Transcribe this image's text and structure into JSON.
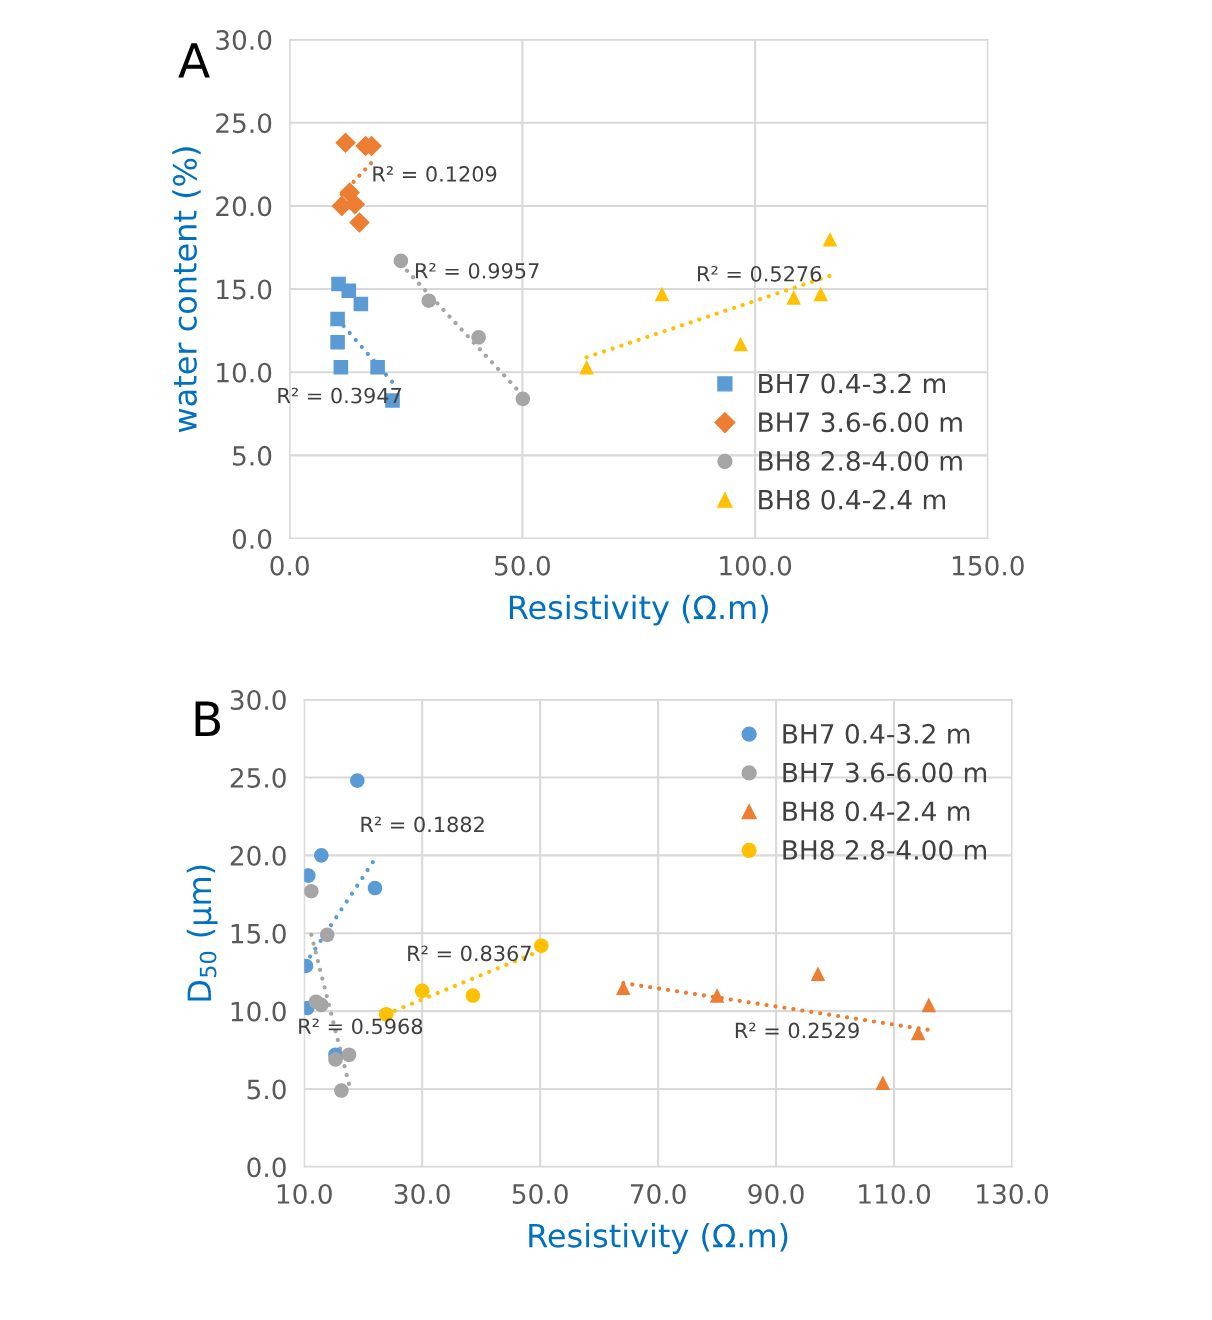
{
  "chart_data": [
    {
      "type": "scatter",
      "xlabel": "Resistivity (Ω.m)",
      "ylabel": "water content (%)",
      "xlim": [
        0,
        150
      ],
      "ylim": [
        0,
        30
      ],
      "xticks": [
        {
          "value": 0,
          "label": "0.0"
        },
        {
          "value": 50,
          "label": "50.0"
        },
        {
          "value": 100,
          "label": "100.0"
        },
        {
          "value": 150,
          "label": "150.0"
        }
      ],
      "yticks": [
        {
          "value": 0,
          "label": "0.0"
        },
        {
          "value": 5,
          "label": "5.0"
        },
        {
          "value": 10,
          "label": "10.0"
        },
        {
          "value": 15,
          "label": "15.0"
        },
        {
          "value": 20,
          "label": "20.0"
        },
        {
          "value": 25,
          "label": "25.0"
        },
        {
          "value": 30,
          "label": "30.0"
        }
      ],
      "grid": true,
      "legend": "bottom right",
      "annotations": [
        "A",
        "R² = 0.1209",
        "R² = 0.9957",
        "R² = 0.5276",
        "R² = 0.3947"
      ],
      "series": [
        {
          "name": "BH7 0.4-3.2 m",
          "color": "#5b9bd5",
          "marker": "square",
          "x": [
            10.5,
            12.7,
            15.3,
            10.3,
            10.3,
            11.0,
            18.9,
            22.1
          ],
          "values": [
            15.3,
            14.9,
            14.1,
            13.2,
            11.8,
            10.3,
            10.3,
            8.3
          ]
        },
        {
          "name": "BH7 3.6-6.00 m",
          "color": "#ed7d31",
          "marker": "diamond",
          "x": [
            12.0,
            16.3,
            17.6,
            12.9,
            11.2,
            14.0,
            15.0
          ],
          "values": [
            23.8,
            23.6,
            23.6,
            20.8,
            20.0,
            20.1,
            19.0
          ]
        },
        {
          "name": "BH8 2.8-4.00 m",
          "color": "#a5a5a5",
          "marker": "circle",
          "x": [
            23.9,
            29.9,
            40.6,
            50.1
          ],
          "values": [
            16.7,
            14.3,
            12.1,
            8.4
          ]
        },
        {
          "name": "BH8 0.4-2.4 m",
          "color": "#ffc000",
          "marker": "triangle",
          "x": [
            63.8,
            80.0,
            96.9,
            108.3,
            114.1,
            116.1
          ],
          "values": [
            10.3,
            14.7,
            11.7,
            14.5,
            14.7,
            18.0
          ]
        },
        {
          "type": "line",
          "line_style": "dotted",
          "color": "#5b9bd5",
          "x": [
            10.3,
            22.1
          ],
          "values": [
            13.2,
            9.4
          ]
        },
        {
          "type": "line",
          "line_style": "dotted",
          "color": "#ed7d31",
          "x": [
            11.2,
            17.6
          ],
          "values": [
            20.7,
            22.6
          ]
        },
        {
          "type": "line",
          "line_style": "dotted",
          "color": "#a5a5a5",
          "x": [
            23.9,
            50.1
          ],
          "values": [
            16.5,
            8.6
          ]
        },
        {
          "type": "line",
          "line_style": "dotted",
          "color": "#ffc000",
          "x": [
            63.8,
            116.1
          ],
          "values": [
            10.9,
            15.8
          ]
        }
      ]
    },
    {
      "type": "scatter",
      "xlabel": "Resistivity (Ω.m)",
      "ylabel": "D$_{50}$ (µm)",
      "xlim": [
        10,
        130
      ],
      "ylim": [
        0,
        30
      ],
      "xticks": [
        {
          "value": 10,
          "label": "10.0"
        },
        {
          "value": 30,
          "label": "30.0"
        },
        {
          "value": 50,
          "label": "50.0"
        },
        {
          "value": 70,
          "label": "70.0"
        },
        {
          "value": 90,
          "label": "90.0"
        },
        {
          "value": 110,
          "label": "110.0"
        },
        {
          "value": 130,
          "label": "130.0"
        }
      ],
      "yticks": [
        {
          "value": 0,
          "label": "0.0"
        },
        {
          "value": 5,
          "label": "5.0"
        },
        {
          "value": 10,
          "label": "10.0"
        },
        {
          "value": 15,
          "label": "15.0"
        },
        {
          "value": 20,
          "label": "20.0"
        },
        {
          "value": 25,
          "label": "25.0"
        },
        {
          "value": 30,
          "label": "30.0"
        }
      ],
      "grid": true,
      "legend": "top right",
      "annotations": [
        "B",
        "R² = 0.1882",
        "R² = 0.8367",
        "R² = 0.5968",
        "R² = 0.2529"
      ],
      "series": [
        {
          "name": "BH7 0.4-3.2 m",
          "color": "#5b9bd5",
          "marker": "circle",
          "x": [
            19.0,
            12.9,
            10.7,
            22.0,
            10.3,
            10.5,
            15.3
          ],
          "values": [
            24.8,
            20.0,
            18.7,
            17.9,
            12.9,
            10.2,
            7.2
          ]
        },
        {
          "name": "BH7 3.6-6.00 m",
          "color": "#a5a5a5",
          "marker": "circle",
          "x": [
            11.2,
            13.9,
            12.0,
            12.9,
            15.3,
            17.6,
            16.3
          ],
          "values": [
            17.7,
            14.9,
            10.6,
            10.4,
            6.9,
            7.2,
            4.9
          ]
        },
        {
          "name": "BH8 0.4-2.4 m",
          "color": "#ed7d31",
          "marker": "triangle",
          "x": [
            64.1,
            80.0,
            97.1,
            115.9,
            114.1,
            108.1
          ],
          "values": [
            11.5,
            11.0,
            12.4,
            10.4,
            8.6,
            5.4
          ]
        },
        {
          "name": "BH8 2.8-4.00 m",
          "color": "#ffc000",
          "marker": "circle",
          "x": [
            23.9,
            30.0,
            38.6,
            50.2
          ],
          "values": [
            9.8,
            11.3,
            11.0,
            14.2
          ]
        },
        {
          "type": "line",
          "line_style": "dotted",
          "color": "#5b9bd5",
          "x": [
            11.0,
            21.7
          ],
          "values": [
            13.5,
            19.6
          ]
        },
        {
          "type": "line",
          "line_style": "dotted",
          "color": "#a5a5a5",
          "x": [
            11.2,
            17.6
          ],
          "values": [
            14.9,
            5.3
          ]
        },
        {
          "type": "line",
          "line_style": "dotted",
          "color": "#ed7d31",
          "x": [
            64.1,
            115.8
          ],
          "values": [
            11.8,
            8.8
          ]
        },
        {
          "type": "line",
          "line_style": "dotted",
          "color": "#ffc000",
          "x": [
            23.9,
            50.2
          ],
          "values": [
            9.8,
            13.9
          ]
        }
      ]
    }
  ]
}
